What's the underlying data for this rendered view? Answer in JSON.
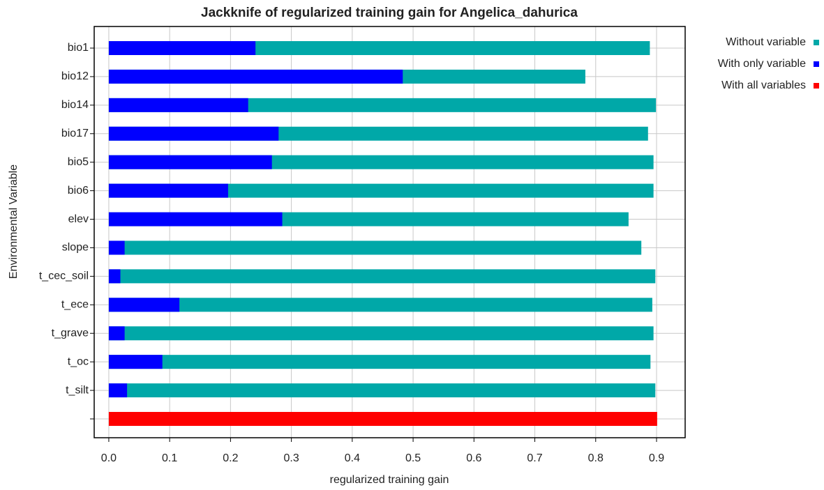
{
  "chart_data": {
    "type": "bar",
    "orientation": "horizontal",
    "title": "Jackknife of regularized training gain for Angelica_dahurica",
    "x_label": "regularized training gain",
    "y_label": "Environmental Variable",
    "categories": [
      "bio1",
      "bio12",
      "bio14",
      "bio17",
      "bio5",
      "bio6",
      "elev",
      "slope",
      "t_cec_soil",
      "t_ece",
      "t_grave",
      "t_oc",
      "t_silt",
      null
    ],
    "series": [
      {
        "name": "Without variable",
        "color": "#00a8a8",
        "values": [
          0.889,
          0.783,
          0.899,
          0.886,
          0.895,
          0.895,
          0.854,
          0.875,
          0.898,
          0.893,
          0.895,
          0.89,
          0.898,
          null
        ]
      },
      {
        "name": "With only variable",
        "color": "#0000ff",
        "values": [
          0.241,
          0.483,
          0.229,
          0.279,
          0.268,
          0.196,
          0.285,
          0.026,
          0.019,
          0.116,
          0.026,
          0.088,
          0.03,
          null
        ]
      },
      {
        "name": "With all variables",
        "color": "#ff0000",
        "values": [
          null,
          null,
          null,
          null,
          null,
          null,
          null,
          null,
          null,
          null,
          null,
          null,
          null,
          0.901
        ]
      }
    ],
    "xlim": [
      -0.024,
      0.947
    ],
    "xticks": [
      {
        "value": 0,
        "label": "0.0"
      },
      0.1,
      0.2,
      0.3,
      0.4,
      0.5,
      0.6,
      0.7,
      0.8,
      0.9
    ],
    "grid": true,
    "legend": "right"
  }
}
